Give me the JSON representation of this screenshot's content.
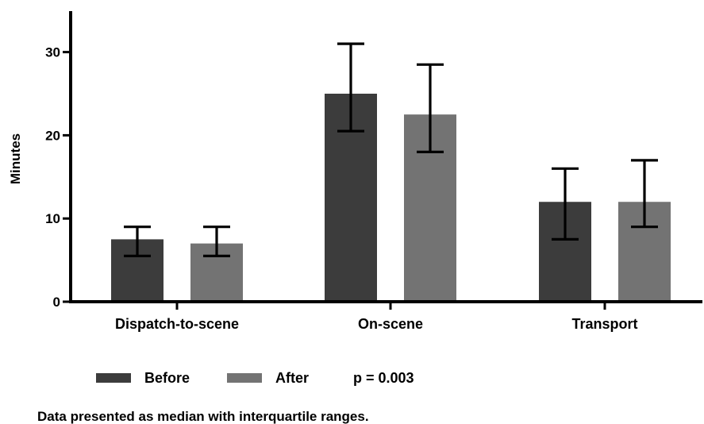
{
  "chart_data": {
    "type": "bar",
    "ylabel": "Minutes",
    "xlabel": "",
    "ylim": [
      0,
      35
    ],
    "yticks": [
      0,
      10,
      20,
      30
    ],
    "categories": [
      "Dispatch-to-scene",
      "On-scene",
      "Transport"
    ],
    "series": [
      {
        "name": "Before",
        "color": "#3c3c3c",
        "values": [
          7.5,
          25,
          12
        ],
        "q1": [
          5.5,
          20.5,
          7.5
        ],
        "q3": [
          9,
          31,
          16
        ]
      },
      {
        "name": "After",
        "color": "#737373",
        "values": [
          7,
          22.5,
          12
        ],
        "q1": [
          5.5,
          18,
          9
        ],
        "q3": [
          9,
          28.5,
          17
        ]
      }
    ],
    "legend_position": "bottom-left",
    "annotation": "p = 0.003",
    "footnote": "Data presented as median with interquartile ranges."
  }
}
